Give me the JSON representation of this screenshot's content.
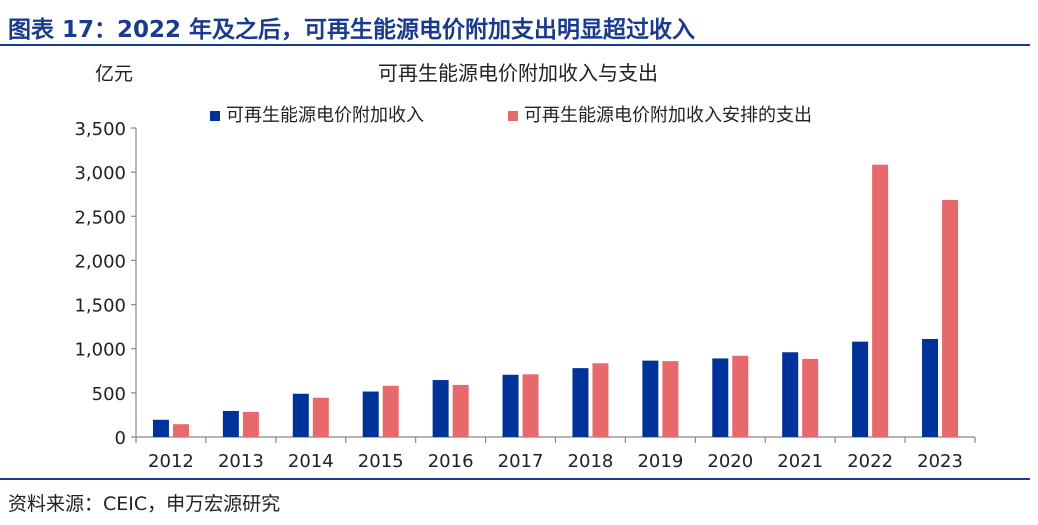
{
  "header": {
    "title": "图表 17：2022 年及之后，可再生能源电价附加支出明显超过收入"
  },
  "source": "资料来源：CEIC，申万宏源研究",
  "colors": {
    "accent": "#1a3a8c",
    "income": "#003399",
    "expense": "#e8696c",
    "axis": "#888888"
  },
  "chart_data": {
    "type": "bar",
    "title": "可再生能源电价附加收入与支出",
    "ylabel": "亿元",
    "xlabel": "",
    "categories": [
      "2012",
      "2013",
      "2014",
      "2015",
      "2016",
      "2017",
      "2018",
      "2019",
      "2020",
      "2021",
      "2022",
      "2023"
    ],
    "series": [
      {
        "name": "可再生能源电价附加收入",
        "values": [
          195,
          295,
          490,
          515,
          645,
          705,
          780,
          865,
          890,
          960,
          1080,
          1110
        ]
      },
      {
        "name": "可再生能源电价附加收入安排的支出",
        "values": [
          145,
          285,
          445,
          580,
          590,
          710,
          835,
          860,
          920,
          885,
          3085,
          2685
        ]
      }
    ],
    "ylim": [
      0,
      3500
    ],
    "yticks": [
      0,
      500,
      1000,
      1500,
      2000,
      2500,
      3000,
      3500
    ],
    "ytick_labels": [
      "0",
      "500",
      "1,000",
      "1,500",
      "2,000",
      "2,500",
      "3,000",
      "3,500"
    ],
    "grid": false,
    "legend_position": "top"
  }
}
